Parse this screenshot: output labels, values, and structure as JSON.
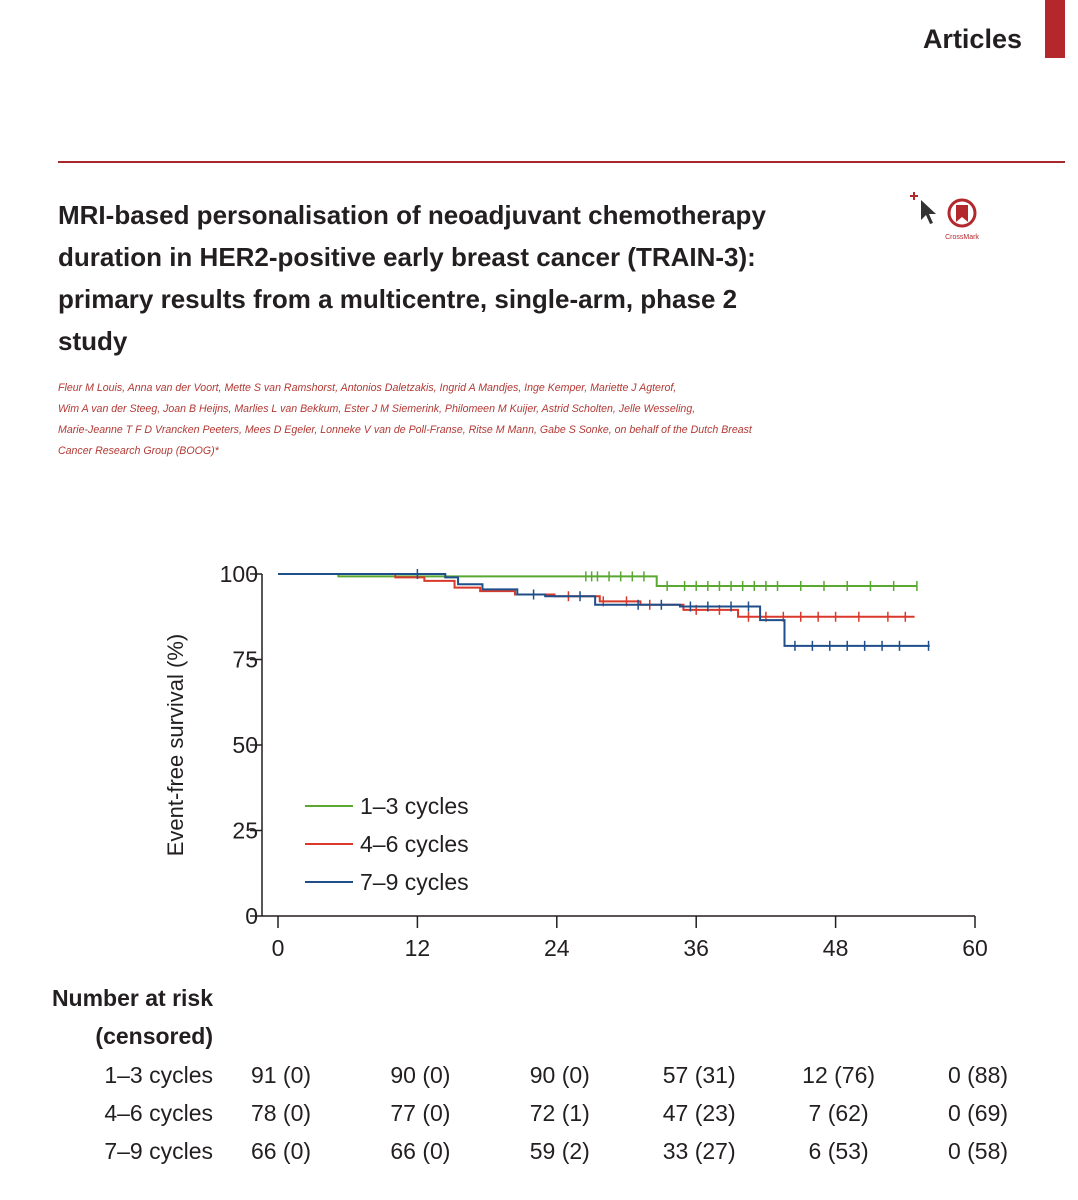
{
  "header": {
    "section": "Articles"
  },
  "article": {
    "title_lines": [
      "MRI-based personalisation of neoadjuvant chemotherapy",
      "duration in HER2-positive early breast cancer (TRAIN-3):",
      "primary results from a multicentre, single-arm, phase 2",
      "study"
    ],
    "author_lines": [
      "Fleur M Louis, Anna van der Voort, Mette S van Ramshorst, Antonios Daletzakis, Ingrid A Mandjes, Inge Kemper, Mariette J Agterof,",
      "Wim A van der Steeg, Joan B Heijns, Marlies L van Bekkum, Ester J M Siemerink, Philomeen M Kuijer, Astrid Scholten, Jelle Wesseling,",
      "Marie-Jeanne T F D Vrancken Peeters, Mees D Egeler, Lonneke V van de Poll-Franse, Ritse M Mann, Gabe S Sonke, on behalf of the Dutch Breast",
      "Cancer Research Group (BOOG)*"
    ],
    "crossmark": "CrossMark"
  },
  "chart_data": {
    "type": "step",
    "ylabel": "Event-free survival (%)",
    "xlim": [
      0,
      60
    ],
    "xticks": [
      0,
      12,
      24,
      36,
      48,
      60
    ],
    "ylim": [
      0,
      100
    ],
    "yticks": [
      0,
      25,
      50,
      75,
      100
    ],
    "legend": "lower left",
    "series": [
      {
        "name": "1–3 cycles",
        "color": "#5aa832",
        "x": [
          0,
          5.2,
          32.6,
          55
        ],
        "values": [
          100,
          99.3,
          96.5,
          96.5
        ],
        "censored_x": [
          26.5,
          27,
          27.5,
          28.5,
          29.5,
          30.5,
          31.5,
          33.5,
          35,
          36,
          37,
          38,
          39,
          40,
          41,
          42,
          43,
          45,
          47,
          49,
          51,
          53,
          55
        ]
      },
      {
        "name": "4–6 cycles",
        "color": "#d9392b",
        "x": [
          0,
          10.1,
          12.6,
          15.2,
          17.4,
          20.4,
          23.8,
          27.7,
          31.2,
          34.9,
          39.6,
          54.8
        ],
        "values": [
          100,
          99,
          98,
          96,
          95,
          94,
          93.5,
          92,
          91,
          89.5,
          87.5,
          87.5
        ],
        "censored_x": [
          25,
          28,
          30,
          32,
          36,
          38,
          40.5,
          42,
          43.5,
          45,
          46.5,
          48,
          50,
          52.5,
          54
        ]
      },
      {
        "name": "7–9 cycles",
        "color": "#1f4f8a",
        "x": [
          0,
          14.4,
          15.5,
          17.6,
          20.6,
          23,
          27.3,
          34.6,
          41.5,
          43.6,
          56.1
        ],
        "values": [
          100,
          99,
          97,
          95.5,
          94,
          93.5,
          91,
          90.5,
          86.5,
          79,
          79
        ],
        "censored_x": [
          12,
          22,
          26,
          31,
          33,
          35.5,
          37,
          39,
          40.5,
          44.5,
          46,
          47.5,
          49,
          50.5,
          52,
          53.5,
          56
        ]
      }
    ]
  },
  "risk_table": {
    "title_lines": [
      "Number at risk",
      "(censored)"
    ],
    "rows": [
      {
        "label": "1–3 cycles",
        "cells": [
          "91 (0)",
          "90 (0)",
          "90 (0)",
          "57 (31)",
          "12 (76)",
          "0 (88)"
        ]
      },
      {
        "label": "4–6 cycles",
        "cells": [
          "78 (0)",
          "77 (0)",
          "72 (1)",
          "47 (23)",
          "7 (62)",
          "0 (69)"
        ]
      },
      {
        "label": "7–9 cycles",
        "cells": [
          "66 (0)",
          "66 (0)",
          "59 (2)",
          "33 (27)",
          "6 (53)",
          "0 (58)"
        ]
      }
    ]
  }
}
